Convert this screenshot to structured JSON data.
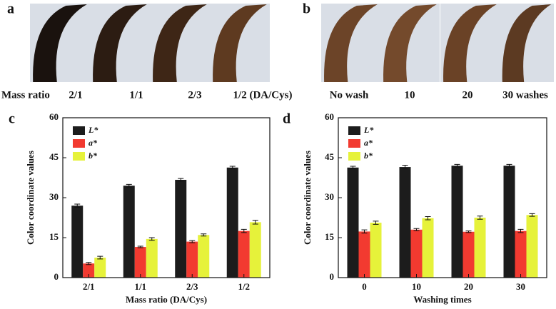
{
  "panels": [
    {
      "label": "a",
      "captions": [
        "Mass ratio",
        "2/1",
        "1/1",
        "2/3",
        "1/2 (DA/Cys)"
      ]
    },
    {
      "label": "b",
      "captions": [
        "No wash",
        "10",
        "20",
        "30 washes"
      ]
    }
  ],
  "chart_data": [
    {
      "type": "bar",
      "panel_label": "c",
      "x_label": "Mass ratio (DA/Cys)",
      "y_label": "Color coordinate values",
      "categories": [
        "2/1",
        "1/1",
        "2/3",
        "1/2"
      ],
      "ylim": [
        0,
        60
      ],
      "yticks": [
        0,
        15,
        30,
        45,
        60
      ],
      "legend": "upper-left",
      "series": [
        {
          "name": "L*",
          "color": "#1c1c1c",
          "values": [
            27,
            34.5,
            36.7,
            41.3
          ],
          "errors": [
            0.6,
            0.5,
            0.5,
            0.5
          ]
        },
        {
          "name": "a*",
          "color": "#f23a30",
          "values": [
            5.3,
            11.5,
            13.5,
            17.5
          ],
          "errors": [
            0.4,
            0.3,
            0.4,
            0.6
          ]
        },
        {
          "name": "b*",
          "color": "#e6f23a",
          "values": [
            7.5,
            14.5,
            16,
            20.8
          ],
          "errors": [
            0.5,
            0.5,
            0.4,
            0.7
          ]
        }
      ]
    },
    {
      "type": "bar",
      "panel_label": "d",
      "x_label": "Washing times",
      "y_label": "Color coordinate values",
      "categories": [
        "0",
        "10",
        "20",
        "30"
      ],
      "ylim": [
        0,
        60
      ],
      "yticks": [
        0,
        15,
        30,
        45,
        60
      ],
      "legend": "upper-left",
      "series": [
        {
          "name": "L*",
          "color": "#1c1c1c",
          "values": [
            41.3,
            41.5,
            42,
            42
          ],
          "errors": [
            0.5,
            0.7,
            0.5,
            0.5
          ]
        },
        {
          "name": "a*",
          "color": "#f23a30",
          "values": [
            17.3,
            18,
            17.2,
            17.5
          ],
          "errors": [
            0.6,
            0.4,
            0.3,
            0.6
          ]
        },
        {
          "name": "b*",
          "color": "#e6f23a",
          "values": [
            20.6,
            22.3,
            22.5,
            23.5
          ],
          "errors": [
            0.6,
            0.6,
            0.6,
            0.5
          ]
        }
      ]
    }
  ]
}
